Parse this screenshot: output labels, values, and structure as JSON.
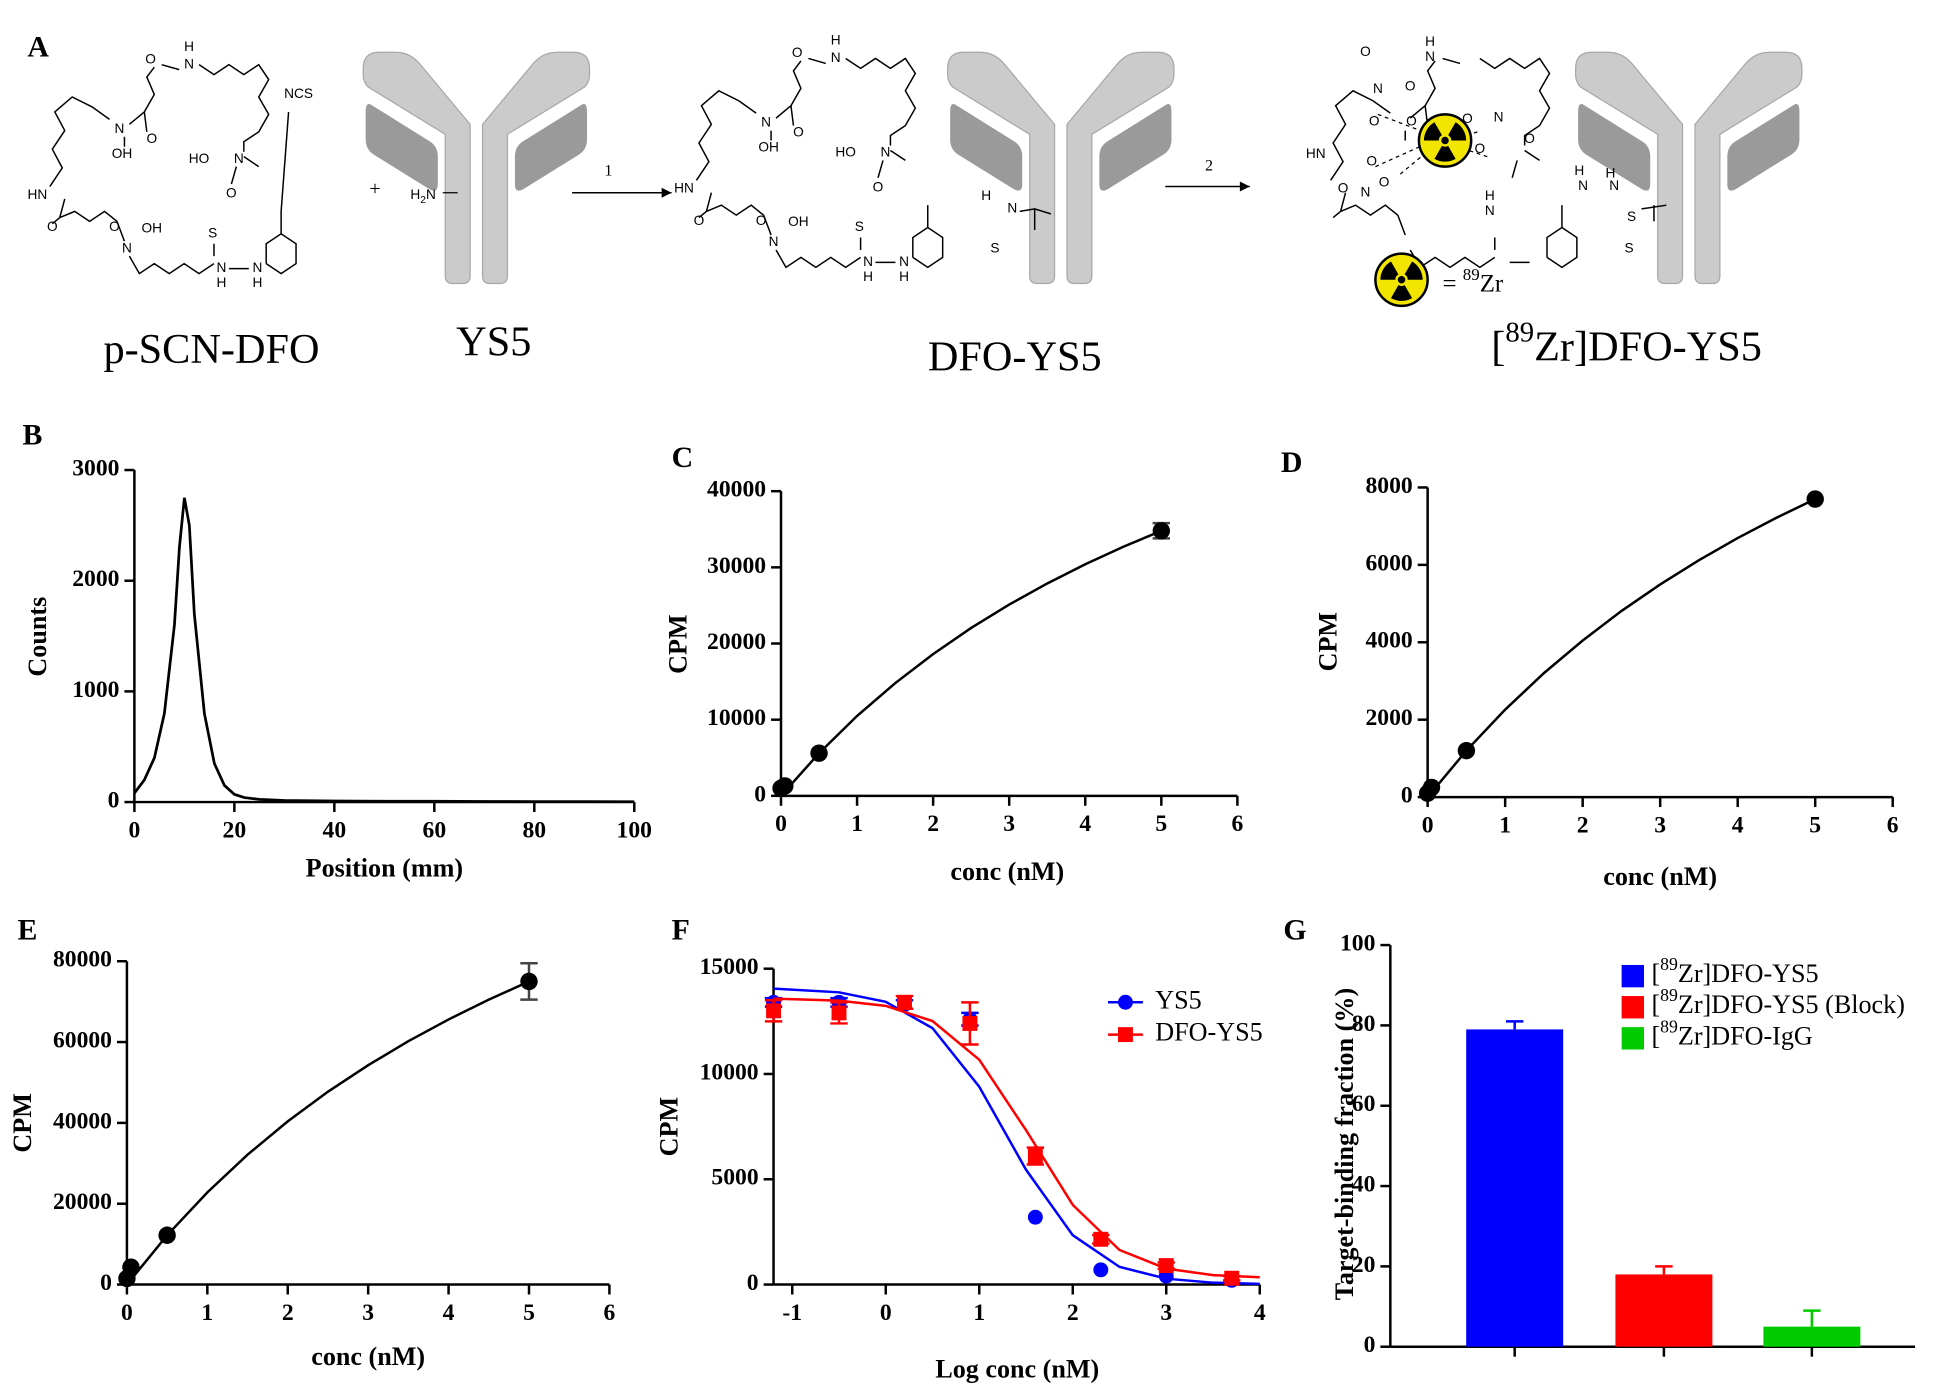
{
  "scheme": {
    "panel": "A",
    "plus": "+",
    "steps": [
      "1",
      "2"
    ],
    "compounds": [
      "p-SCN-DFO",
      "YS5",
      "DFO-YS5",
      "[89Zr]DFO-YS5"
    ],
    "key": "= 89Zr",
    "amine": "H2N",
    "atoms": [
      [
        "O",
        "H",
        "N",
        "N",
        "OH",
        "O",
        "HO",
        "N",
        "O",
        "HN",
        "O",
        "O",
        "N",
        "OH",
        "S",
        "N",
        "H",
        "N",
        "H",
        "NCS"
      ],
      [
        "O",
        "H",
        "N",
        "N",
        "OH",
        "O",
        "HO",
        "N",
        "O",
        "HN",
        "O",
        "O",
        "N",
        "OH",
        "S",
        "N",
        "H",
        "N",
        "H",
        "H",
        "N",
        "S"
      ],
      [
        "O",
        "H",
        "N",
        "N",
        "O",
        "O",
        "O",
        "O",
        "N",
        "O",
        "O",
        "HN",
        "O",
        "N",
        "O",
        "O",
        "N",
        "H",
        "S",
        "H",
        "N",
        "H",
        "N",
        "S"
      ]
    ]
  },
  "chart_data": [
    {
      "type": "line",
      "panel": "B",
      "xlabel": "Position (mm)",
      "ylabel": "Counts",
      "x": [
        0,
        2,
        4,
        6,
        8,
        9,
        10,
        11,
        12,
        14,
        16,
        18,
        20,
        22,
        25,
        30,
        40,
        50,
        60,
        70,
        80,
        90,
        100
      ],
      "values": [
        80,
        200,
        400,
        800,
        1600,
        2300,
        2750,
        2500,
        1700,
        800,
        350,
        150,
        70,
        40,
        25,
        15,
        10,
        8,
        8,
        6,
        5,
        4,
        3
      ],
      "color": "#000000",
      "xlim": [
        0,
        100
      ],
      "xticks": [
        0,
        20,
        40,
        60,
        80,
        100
      ],
      "ylim": [
        0,
        3000
      ],
      "yticks": [
        0,
        1000,
        2000,
        3000
      ]
    },
    {
      "type": "scatter",
      "panel": "C",
      "xlabel": "conc (nM)",
      "ylabel": "CPM",
      "x": [
        0,
        0.05,
        0.5,
        5
      ],
      "values": [
        1000,
        1300,
        5600,
        34800
      ],
      "errors": [
        null,
        null,
        null,
        1000
      ],
      "color": "#000000",
      "fit": {
        "x": [
          0,
          0.5,
          1,
          1.5,
          2,
          2.5,
          3,
          3.5,
          4,
          4.5,
          5
        ],
        "values": [
          0,
          5600,
          10490,
          14800,
          18620,
          22040,
          25110,
          27890,
          30400,
          32700,
          34800
        ]
      },
      "xlim": [
        0,
        6
      ],
      "xticks": [
        0,
        1,
        2,
        3,
        4,
        5,
        6
      ],
      "ylim": [
        0,
        40000
      ],
      "yticks": [
        0,
        10000,
        20000,
        30000,
        40000
      ]
    },
    {
      "type": "scatter",
      "panel": "D",
      "xlabel": "conc (nM)",
      "ylabel": "CPM",
      "x": [
        0,
        0.05,
        0.5,
        5
      ],
      "values": [
        100,
        250,
        1200,
        7700
      ],
      "errors": [
        null,
        null,
        null,
        null
      ],
      "color": "#000000",
      "fit": {
        "x": [
          0,
          0.5,
          1,
          1.5,
          2,
          2.5,
          3,
          3.5,
          4,
          4.5,
          5
        ],
        "values": [
          0,
          1200,
          2260,
          3202,
          4046,
          4806,
          5495,
          6121,
          6693,
          7217,
          7700
        ]
      },
      "xlim": [
        0,
        6
      ],
      "xticks": [
        0,
        1,
        2,
        3,
        4,
        5,
        6
      ],
      "ylim": [
        0,
        8000
      ],
      "yticks": [
        0,
        2000,
        4000,
        6000,
        8000
      ]
    },
    {
      "type": "scatter",
      "panel": "E",
      "xlabel": "conc (nM)",
      "ylabel": "CPM",
      "x": [
        0,
        0.05,
        0.5,
        5
      ],
      "values": [
        1500,
        4300,
        12200,
        75000
      ],
      "errors": [
        null,
        null,
        null,
        4500
      ],
      "color": "#000000",
      "fit": {
        "x": [
          0,
          0.5,
          1,
          1.5,
          2,
          2.5,
          3,
          3.5,
          4,
          4.5,
          5
        ],
        "values": [
          0,
          12200,
          22810,
          32130,
          40370,
          47710,
          54290,
          60220,
          65590,
          70480,
          75000
        ]
      },
      "xlim": [
        0,
        6
      ],
      "xticks": [
        0,
        1,
        2,
        3,
        4,
        5,
        6
      ],
      "ylim": [
        0,
        80000
      ],
      "yticks": [
        0,
        20000,
        40000,
        60000,
        80000
      ]
    },
    {
      "type": "scatter",
      "panel": "F",
      "xlabel": "Log conc (nM)",
      "ylabel": "CPM",
      "x": [
        -1.2,
        -0.5,
        0.2,
        0.9,
        1.6,
        2.3,
        3.0,
        3.7
      ],
      "fit_x": [
        -1.2,
        -0.5,
        0,
        0.5,
        1,
        1.5,
        2,
        2.5,
        3,
        3.5,
        4
      ],
      "series": [
        {
          "name": "YS5",
          "color": "#0000ff",
          "marker": "circle",
          "values": [
            13400,
            13400,
            13300,
            12600,
            3200,
            700,
            400,
            200
          ],
          "errors": [
            200,
            200,
            200,
            300,
            null,
            null,
            null,
            null
          ],
          "fit": [
            14056,
            13880,
            13427,
            12175,
            9394,
            5455,
            2346,
            837,
            276,
            88,
            28
          ]
        },
        {
          "name": "DFO-YS5",
          "color": "#ff0000",
          "marker": "square",
          "values": [
            13000,
            12900,
            13400,
            12400,
            6100,
            2150,
            900,
            300
          ],
          "errors": [
            500,
            500,
            300,
            1000,
            400,
            200,
            150,
            100
          ],
          "fit": [
            13576,
            13483,
            13235,
            12512,
            10676,
            7333,
            3783,
            1642,
            755,
            448,
            347
          ]
        }
      ],
      "xlim": [
        -1.2,
        4
      ],
      "xticks": [
        -1,
        0,
        1,
        2,
        3,
        4
      ],
      "ylim": [
        0,
        15000
      ],
      "yticks": [
        0,
        5000,
        10000,
        15000
      ]
    },
    {
      "type": "bar",
      "panel": "G",
      "ylabel": "Target-binding fraction (%)",
      "categories": [
        null,
        null,
        null
      ],
      "values": [
        79,
        18,
        5
      ],
      "errors": [
        2,
        2,
        4
      ],
      "colors": [
        "#0000ff",
        "#ff0000",
        "#00cc00"
      ],
      "legend": [
        "[89Zr]DFO-YS5",
        "[89Zr]DFO-YS5 (Block)",
        "[89Zr]DFO-IgG"
      ],
      "ylim": [
        0,
        100
      ],
      "yticks": [
        0,
        20,
        40,
        60,
        80,
        100
      ]
    }
  ]
}
